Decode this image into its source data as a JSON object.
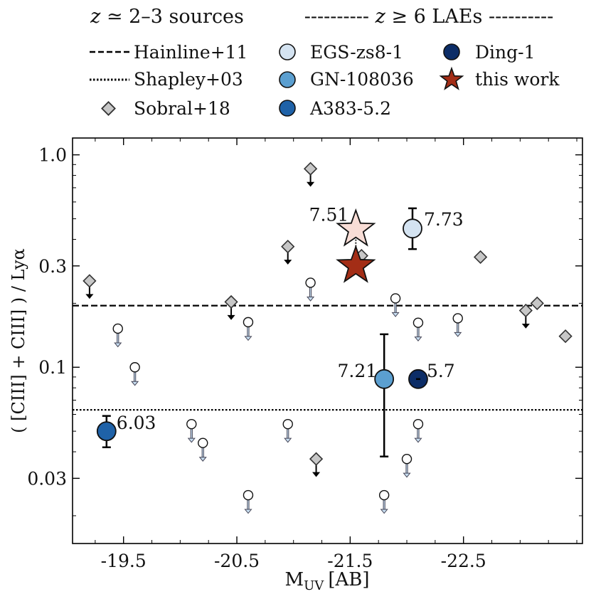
{
  "chart_data": {
    "type": "scatter",
    "xlabel": "M",
    "xlabel_sub": "UV",
    "xlabel_unit": "[AB]",
    "ylabel": "( [CIII] + CIII] ) / Lyα",
    "xlim": [
      -19.05,
      -23.55
    ],
    "ylim": [
      0.0148,
      1.2
    ],
    "yscale": "log",
    "x_ticks": [
      -19.5,
      -20.5,
      -21.5,
      -22.5
    ],
    "x_tick_labels": [
      "-19.5",
      "-20.5",
      "-21.5",
      "-22.5"
    ],
    "y_ticks": [
      0.03,
      0.1,
      0.3,
      1.0
    ],
    "y_tick_labels": [
      "0.03",
      "0.1",
      "0.3",
      "1.0"
    ],
    "legend": {
      "header_left": "𝑧 ≃ 2–3 sources",
      "header_right": "---------- 𝑧 ≥ 6 LAEs ----------",
      "entries": [
        {
          "label": "Hainline+11",
          "marker": "dashed-line"
        },
        {
          "label": "Shapley+03",
          "marker": "dotted-line"
        },
        {
          "label": "Sobral+18",
          "marker": "diamond"
        },
        {
          "label": "EGS-zs8-1",
          "marker": "circle",
          "color": "#d4e3f1"
        },
        {
          "label": "GN-108036",
          "marker": "circle",
          "color": "#5b9fd0"
        },
        {
          "label": "A383-5.2",
          "marker": "circle",
          "color": "#1f62a8"
        },
        {
          "label": "Ding-1",
          "marker": "circle",
          "color": "#0c2d67"
        },
        {
          "label": "this work",
          "marker": "star",
          "color": "#a32d16"
        }
      ]
    },
    "reference_lines": [
      {
        "name": "Hainline+11",
        "y": 0.195,
        "style": "dashed"
      },
      {
        "name": "Shapley+03",
        "y": 0.063,
        "style": "dotted"
      }
    ],
    "sobral_upper_limits": [
      {
        "x": -19.2,
        "y": 0.255
      },
      {
        "x": -20.45,
        "y": 0.203
      },
      {
        "x": -20.95,
        "y": 0.37
      },
      {
        "x": -21.15,
        "y": 0.86
      },
      {
        "x": -23.05,
        "y": 0.185
      }
    ],
    "sobral_points": [
      {
        "x": -21.6,
        "y": 0.335
      },
      {
        "x": -22.65,
        "y": 0.33
      },
      {
        "x": -23.15,
        "y": 0.2
      },
      {
        "x": -23.4,
        "y": 0.14
      },
      {
        "x": -21.2,
        "y": 0.037,
        "upper_limit": true
      }
    ],
    "open_upper_limits": [
      {
        "x": -19.45,
        "y": 0.152
      },
      {
        "x": -19.6,
        "y": 0.1
      },
      {
        "x": -20.1,
        "y": 0.054
      },
      {
        "x": -20.2,
        "y": 0.044
      },
      {
        "x": -20.6,
        "y": 0.163
      },
      {
        "x": -20.95,
        "y": 0.054
      },
      {
        "x": -21.15,
        "y": 0.25
      },
      {
        "x": -20.6,
        "y": 0.025
      },
      {
        "x": -21.8,
        "y": 0.025
      },
      {
        "x": -21.9,
        "y": 0.211
      },
      {
        "x": -22.0,
        "y": 0.037
      },
      {
        "x": -22.1,
        "y": 0.054
      },
      {
        "x": -22.1,
        "y": 0.162
      },
      {
        "x": -22.45,
        "y": 0.17
      }
    ],
    "laes": [
      {
        "name": "A383-5.2",
        "x": -19.35,
        "y": 0.05,
        "err": [
          0.042,
          0.059
        ],
        "z_label": "6.03",
        "color": "#1f62a8"
      },
      {
        "name": "GN-108036",
        "x": -21.8,
        "y": 0.088,
        "err": [
          0.038,
          0.143
        ],
        "z_label": "7.21",
        "color": "#5b9fd0"
      },
      {
        "name": "Ding-1",
        "x": -22.1,
        "y": 0.088,
        "err": [
          0.088,
          0.088
        ],
        "z_label": "5.7",
        "color": "#0c2d67"
      },
      {
        "name": "EGS-zs8-1",
        "x": -22.05,
        "y": 0.45,
        "err": [
          0.36,
          0.56
        ],
        "z_label": "7.73",
        "color": "#d4e3f1"
      }
    ],
    "this_work": [
      {
        "x": -21.55,
        "y": 0.445,
        "z_label": "7.51",
        "color": "#f8ddd6"
      },
      {
        "x": -21.55,
        "y": 0.3,
        "color": "#a32d16"
      }
    ]
  }
}
